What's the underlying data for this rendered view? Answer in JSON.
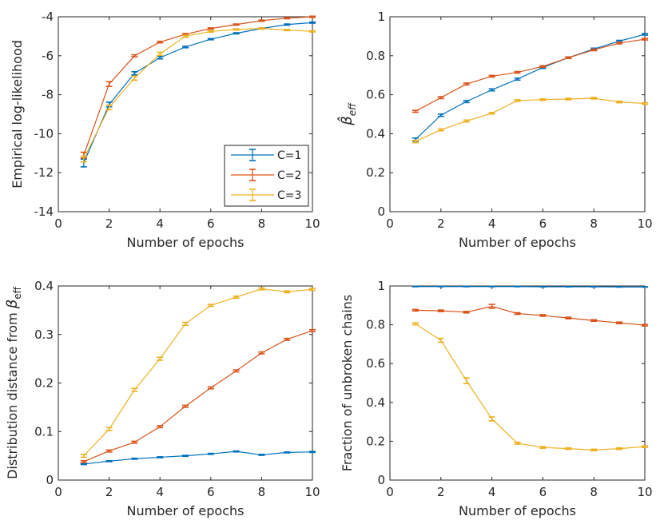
{
  "colors": {
    "C1": "#0072BD",
    "C2": "#D95319",
    "C3": "#EDB120",
    "axis": "#262626"
  },
  "chart_data": [
    {
      "type": "line",
      "ylabel": "Empirical log-likelihood",
      "xlabel": "Number of epochs",
      "xlim": [
        0,
        10
      ],
      "ylim": [
        -14,
        -4
      ],
      "xticks": [
        0,
        2,
        4,
        6,
        8,
        10
      ],
      "yticks": [
        -14,
        -12,
        -10,
        -8,
        -6,
        -4
      ],
      "legend": {
        "position": "lower-right",
        "entries": [
          "C=1",
          "C=2",
          "C=3"
        ]
      },
      "series": [
        {
          "name": "C=1",
          "x": [
            1,
            2,
            3,
            4,
            5,
            6,
            7,
            8,
            9,
            10
          ],
          "values": [
            -11.5,
            -8.5,
            -6.9,
            -6.1,
            -5.55,
            -5.15,
            -4.85,
            -4.6,
            -4.4,
            -4.3
          ],
          "err": [
            0.2,
            0.12,
            0.08,
            0.06,
            0.04,
            0.03,
            0.03,
            0.03,
            0.03,
            0.03
          ]
        },
        {
          "name": "C=2",
          "x": [
            1,
            2,
            3,
            4,
            5,
            6,
            7,
            8,
            9,
            10
          ],
          "values": [
            -11.1,
            -7.45,
            -6.0,
            -5.3,
            -4.9,
            -4.6,
            -4.4,
            -4.2,
            -4.07,
            -4.0
          ],
          "err": [
            0.15,
            0.12,
            0.05,
            0.04,
            0.04,
            0.03,
            0.03,
            0.03,
            0.03,
            0.03
          ]
        },
        {
          "name": "C=3",
          "x": [
            1,
            2,
            3,
            4,
            5,
            6,
            7,
            8,
            9,
            10
          ],
          "values": [
            -11.3,
            -8.65,
            -7.15,
            -5.9,
            -5.0,
            -4.75,
            -4.65,
            -4.6,
            -4.68,
            -4.75
          ],
          "err": [
            0.15,
            0.12,
            0.1,
            0.08,
            0.05,
            0.04,
            0.03,
            0.03,
            0.03,
            0.03
          ]
        }
      ]
    },
    {
      "type": "line",
      "ylabel": "β̂eff",
      "xlabel": "Number of epochs",
      "xlim": [
        0,
        10
      ],
      "ylim": [
        0,
        1
      ],
      "xticks": [
        0,
        2,
        4,
        6,
        8,
        10
      ],
      "yticks": [
        0,
        0.2,
        0.4,
        0.6,
        0.8,
        1
      ],
      "series": [
        {
          "name": "C=1",
          "x": [
            1,
            2,
            3,
            4,
            5,
            6,
            7,
            8,
            9,
            10
          ],
          "values": [
            0.37,
            0.495,
            0.565,
            0.625,
            0.68,
            0.74,
            0.79,
            0.835,
            0.875,
            0.91
          ],
          "err": [
            0.008,
            0.006,
            0.005,
            0.005,
            0.005,
            0.005,
            0.004,
            0.004,
            0.004,
            0.004
          ]
        },
        {
          "name": "C=2",
          "x": [
            1,
            2,
            3,
            4,
            5,
            6,
            7,
            8,
            9,
            10
          ],
          "values": [
            0.515,
            0.585,
            0.655,
            0.695,
            0.715,
            0.745,
            0.79,
            0.83,
            0.865,
            0.885
          ],
          "err": [
            0.005,
            0.005,
            0.005,
            0.004,
            0.004,
            0.004,
            0.004,
            0.004,
            0.004,
            0.004
          ]
        },
        {
          "name": "C=3",
          "x": [
            1,
            2,
            3,
            4,
            5,
            6,
            7,
            8,
            9,
            10
          ],
          "values": [
            0.36,
            0.42,
            0.465,
            0.505,
            0.57,
            0.575,
            0.578,
            0.582,
            0.563,
            0.555
          ],
          "err": [
            0.006,
            0.005,
            0.005,
            0.004,
            0.004,
            0.004,
            0.004,
            0.004,
            0.004,
            0.004
          ]
        }
      ]
    },
    {
      "type": "line",
      "ylabel": "Distribution distance from β",
      "ylabel_sub": "eff",
      "xlabel": "Number of epochs",
      "xlim": [
        0,
        10
      ],
      "ylim": [
        0,
        0.4
      ],
      "xticks": [
        0,
        2,
        4,
        6,
        8,
        10
      ],
      "yticks": [
        0,
        0.1,
        0.2,
        0.3,
        0.4
      ],
      "series": [
        {
          "name": "C=1",
          "x": [
            1,
            2,
            3,
            4,
            5,
            6,
            7,
            8,
            9,
            10
          ],
          "values": [
            0.033,
            0.039,
            0.044,
            0.047,
            0.05,
            0.054,
            0.059,
            0.052,
            0.057,
            0.058
          ],
          "err": [
            0.001,
            0.001,
            0.001,
            0.001,
            0.001,
            0.001,
            0.001,
            0.001,
            0.001,
            0.001
          ]
        },
        {
          "name": "C=2",
          "x": [
            1,
            2,
            3,
            4,
            5,
            6,
            7,
            8,
            9,
            10
          ],
          "values": [
            0.038,
            0.06,
            0.078,
            0.11,
            0.152,
            0.19,
            0.225,
            0.262,
            0.29,
            0.308
          ],
          "err": [
            0.002,
            0.002,
            0.002,
            0.002,
            0.002,
            0.002,
            0.002,
            0.002,
            0.002,
            0.002
          ]
        },
        {
          "name": "C=3",
          "x": [
            1,
            2,
            3,
            4,
            5,
            6,
            7,
            8,
            9,
            10
          ],
          "values": [
            0.05,
            0.105,
            0.186,
            0.25,
            0.322,
            0.36,
            0.377,
            0.394,
            0.388,
            0.393
          ],
          "err": [
            0.003,
            0.003,
            0.003,
            0.003,
            0.003,
            0.002,
            0.002,
            0.002,
            0.002,
            0.002
          ]
        }
      ]
    },
    {
      "type": "line",
      "ylabel": "Fraction of unbroken chains",
      "xlabel": "Number of epochs",
      "xlim": [
        0,
        10
      ],
      "ylim": [
        0,
        1
      ],
      "xticks": [
        0,
        2,
        4,
        6,
        8,
        10
      ],
      "yticks": [
        0,
        0.2,
        0.4,
        0.6,
        0.8,
        1
      ],
      "series": [
        {
          "name": "C=1",
          "x": [
            1,
            2,
            3,
            4,
            5,
            6,
            7,
            8,
            9,
            10
          ],
          "values": [
            0.997,
            0.997,
            0.997,
            0.997,
            0.997,
            0.996,
            0.996,
            0.996,
            0.995,
            0.995
          ],
          "err": [
            0.001,
            0.001,
            0.001,
            0.001,
            0.001,
            0.001,
            0.001,
            0.001,
            0.001,
            0.001
          ]
        },
        {
          "name": "C=2",
          "x": [
            1,
            2,
            3,
            4,
            5,
            6,
            7,
            8,
            9,
            10
          ],
          "values": [
            0.875,
            0.872,
            0.865,
            0.895,
            0.858,
            0.848,
            0.835,
            0.822,
            0.81,
            0.798
          ],
          "err": [
            0.004,
            0.004,
            0.004,
            0.01,
            0.004,
            0.004,
            0.004,
            0.004,
            0.004,
            0.004
          ]
        },
        {
          "name": "C=3",
          "x": [
            1,
            2,
            3,
            4,
            5,
            6,
            7,
            8,
            9,
            10
          ],
          "values": [
            0.805,
            0.72,
            0.512,
            0.315,
            0.19,
            0.168,
            0.162,
            0.155,
            0.162,
            0.172
          ],
          "err": [
            0.005,
            0.01,
            0.015,
            0.01,
            0.005,
            0.004,
            0.004,
            0.004,
            0.004,
            0.004
          ]
        }
      ]
    }
  ]
}
